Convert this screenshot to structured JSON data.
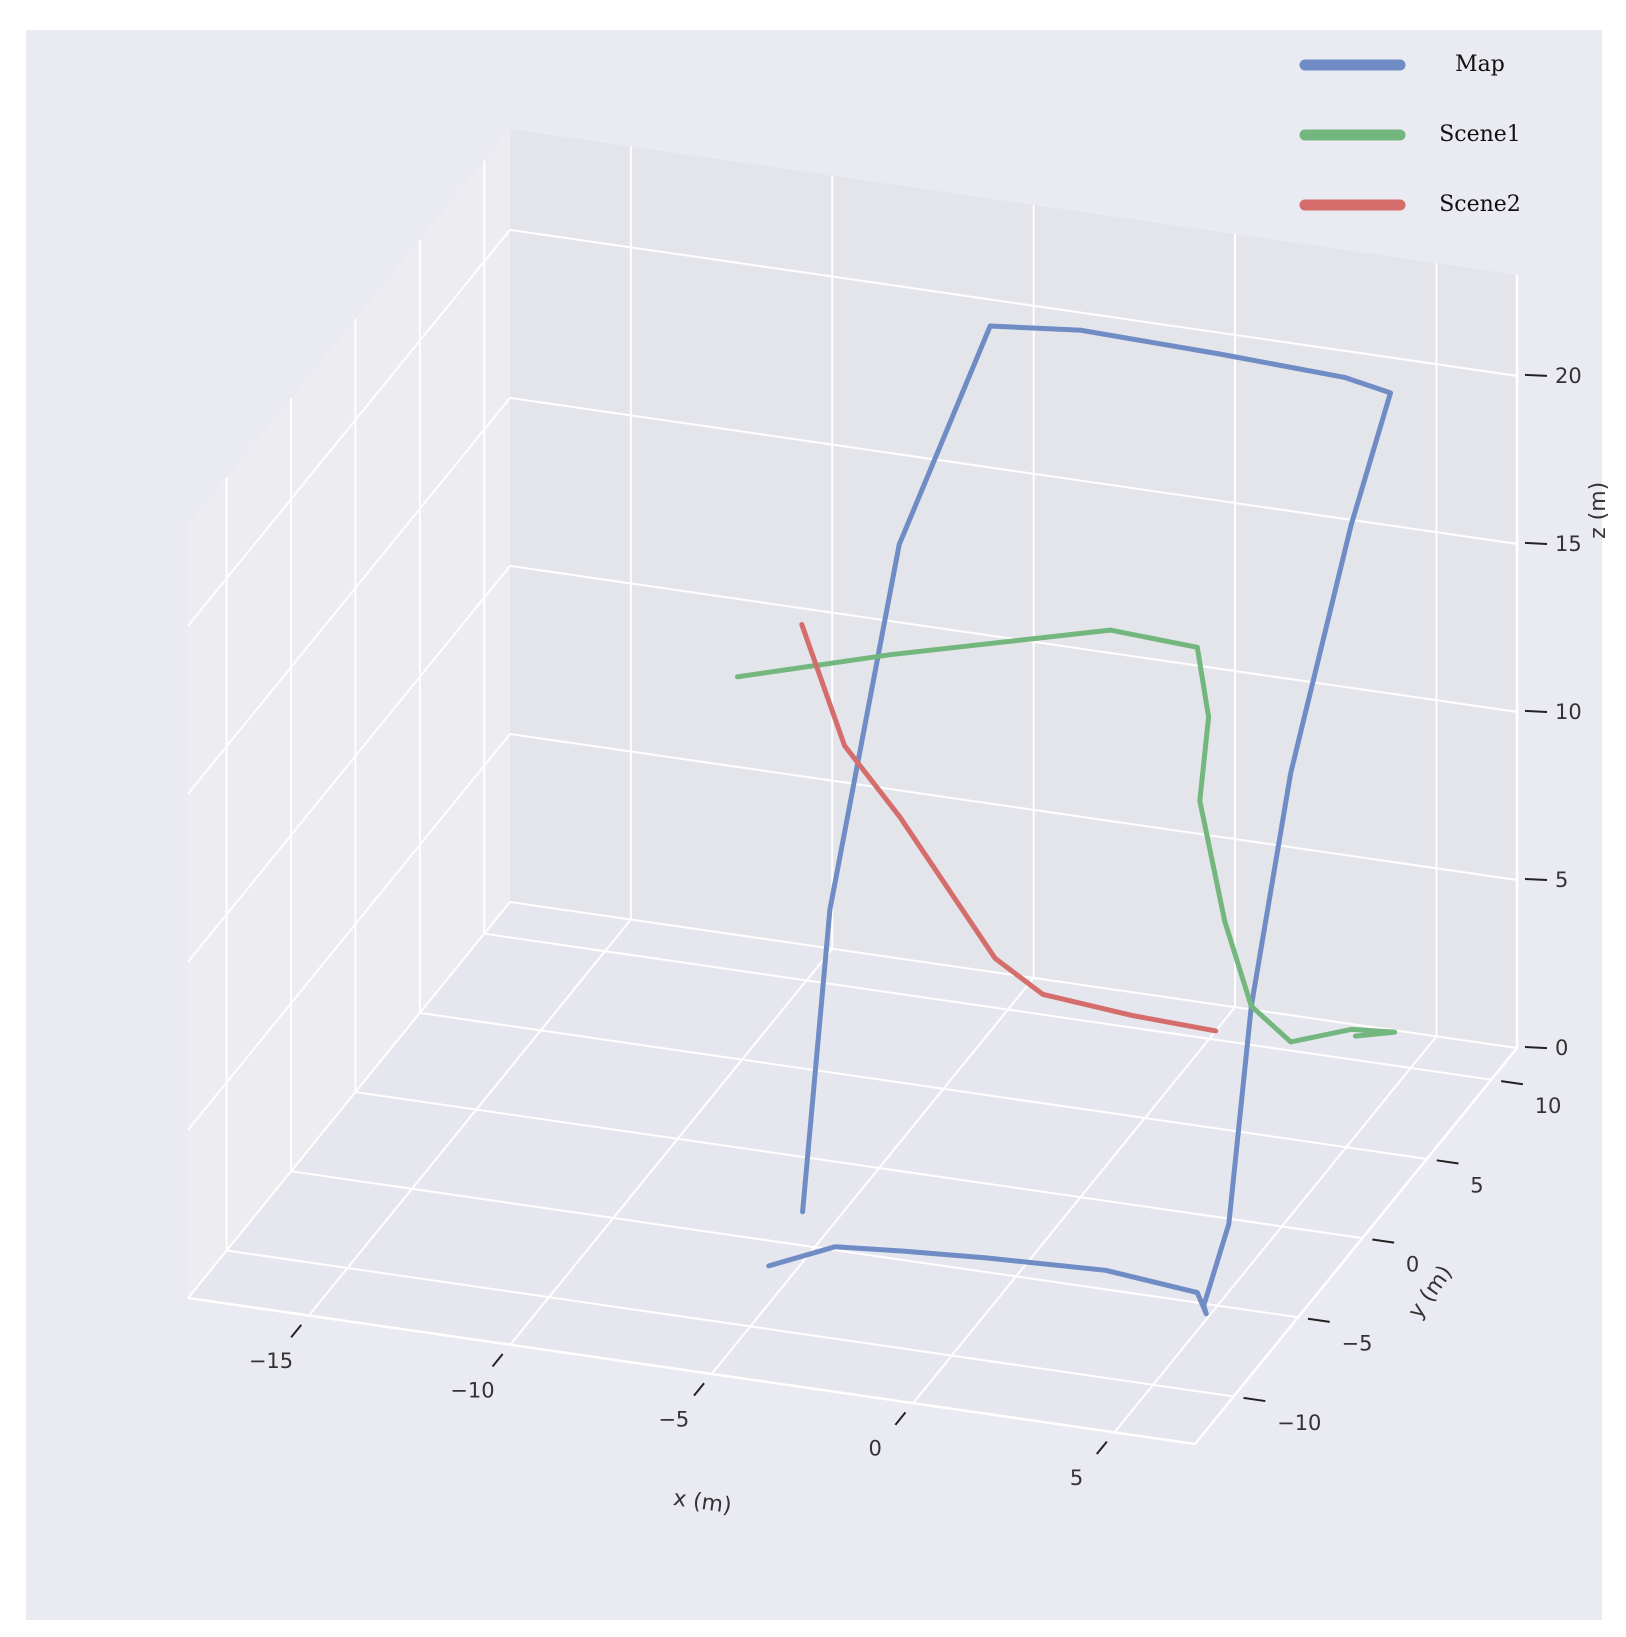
{
  "chart_data": {
    "type": "line",
    "projection": "3d",
    "title": "",
    "xlabel": "x (m)",
    "ylabel": "y (m)",
    "zlabel": "z (m)",
    "xlim": [
      -18,
      7
    ],
    "ylim": [
      -13,
      12
    ],
    "zlim": [
      0,
      23
    ],
    "x_ticks": [
      -15,
      -10,
      -5,
      0,
      5
    ],
    "x_tick_labels": [
      "−15",
      "−10",
      "−5",
      "0",
      "5"
    ],
    "y_ticks": [
      10,
      5,
      0,
      -5,
      -10
    ],
    "y_tick_labels": [
      "10",
      "5",
      "0",
      "−5",
      "−10"
    ],
    "z_ticks": [
      0,
      5,
      10,
      15,
      20
    ],
    "z_tick_labels": [
      "0",
      "5",
      "10",
      "15",
      "20"
    ],
    "grid": true,
    "legend": {
      "position": "top-right",
      "entries": [
        "Map",
        "Scene1",
        "Scene2"
      ]
    },
    "series": [
      {
        "name": "Map",
        "color": "#6f8dc4",
        "x": [
          -5.5,
          -4.5,
          -3.0,
          -1.0,
          2.0,
          4.5,
          5.2,
          5.3,
          5.6,
          5.2,
          4.9,
          4.8,
          4.5,
          3.2,
          0.0,
          -3.5,
          -5.6,
          -6.1,
          -5.9,
          -5.3
        ],
        "y": [
          -7.0,
          -5.0,
          -4.5,
          -4.2,
          -4.3,
          -5.0,
          -6.5,
          -7.0,
          -6.0,
          -3.0,
          1.0,
          6.0,
          10.0,
          10.5,
          10.8,
          11.0,
          10.5,
          5.0,
          -1.0,
          -5.0
        ],
        "z": [
          0.3,
          0.1,
          0.0,
          0.0,
          0.2,
          0.3,
          0.5,
          1.0,
          3.0,
          8.0,
          13.0,
          18.0,
          20.0,
          20.0,
          20.0,
          20.0,
          20.0,
          16.0,
          8.0,
          1.0
        ]
      },
      {
        "name": "Scene1",
        "color": "#73b77e",
        "x": [
          -5.0,
          -2.0,
          2.5,
          4.5,
          5.1,
          5.2,
          5.5,
          5.2,
          4.9,
          4.8,
          4.6,
          3.5
        ],
        "y": [
          -11.0,
          -8.5,
          -5.5,
          -5.0,
          -6.0,
          -7.0,
          -6.0,
          -3.0,
          1.0,
          6.0,
          10.0,
          10.4
        ],
        "z": [
          19.8,
          19.8,
          19.9,
          19.5,
          18.0,
          16.0,
          12.0,
          8.0,
          5.0,
          3.0,
          1.0,
          0.5
        ]
      },
      {
        "name": "Scene2",
        "color": "#d46d6b",
        "x": [
          -5.0,
          -4.9,
          -4.8,
          -4.9,
          -5.0,
          -4.2,
          -2.0,
          0.0
        ],
        "y": [
          -6.0,
          -3.0,
          1.0,
          5.0,
          9.0,
          10.2,
          10.3,
          10.5
        ],
        "z": [
          19.0,
          14.0,
          10.0,
          6.0,
          2.0,
          0.5,
          0.2,
          0.0
        ]
      }
    ]
  }
}
